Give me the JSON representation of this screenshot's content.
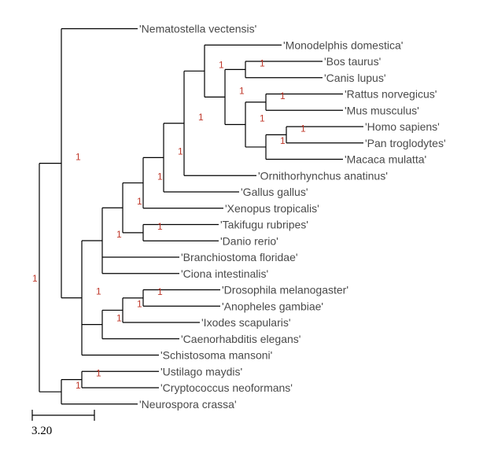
{
  "tree": {
    "leaves": [
      {
        "id": "nematostella",
        "label": "'Nematostella vectensis'"
      },
      {
        "id": "monodelphis",
        "label": "'Monodelphis domestica'"
      },
      {
        "id": "bos",
        "label": "'Bos taurus'"
      },
      {
        "id": "canis",
        "label": "'Canis lupus'"
      },
      {
        "id": "rattus",
        "label": "'Rattus norvegicus'"
      },
      {
        "id": "mus",
        "label": "'Mus musculus'"
      },
      {
        "id": "homo",
        "label": "'Homo sapiens'"
      },
      {
        "id": "pan",
        "label": "'Pan troglodytes'"
      },
      {
        "id": "macaca",
        "label": "'Macaca mulatta'"
      },
      {
        "id": "ornithorhynchus",
        "label": "'Ornithorhynchus anatinus'"
      },
      {
        "id": "gallus",
        "label": "'Gallus gallus'"
      },
      {
        "id": "xenopus",
        "label": "'Xenopus tropicalis'"
      },
      {
        "id": "takifugu",
        "label": "'Takifugu rubripes'"
      },
      {
        "id": "danio",
        "label": "'Danio rerio'"
      },
      {
        "id": "branchiostoma",
        "label": "'Branchiostoma floridae'"
      },
      {
        "id": "ciona",
        "label": "'Ciona intestinalis'"
      },
      {
        "id": "drosophila",
        "label": "'Drosophila melanogaster'"
      },
      {
        "id": "anopheles",
        "label": "'Anopheles gambiae'"
      },
      {
        "id": "ixodes",
        "label": "'Ixodes scapularis'"
      },
      {
        "id": "caenorhabditis",
        "label": "'Caenorhabditis elegans'"
      },
      {
        "id": "schistosoma",
        "label": "'Schistosoma mansoni'"
      },
      {
        "id": "ustilago",
        "label": "'Ustilago maydis'"
      },
      {
        "id": "cryptococcus",
        "label": "'Cryptococcus neoformans'"
      },
      {
        "id": "neurospora",
        "label": "'Neurospora crassa'"
      }
    ],
    "support_label": "1",
    "scale_bar": {
      "label": "3.20"
    }
  },
  "colors": {
    "branch": "#000000",
    "leaf_text": "#4a4a4a",
    "support_text": "#c0392b"
  }
}
